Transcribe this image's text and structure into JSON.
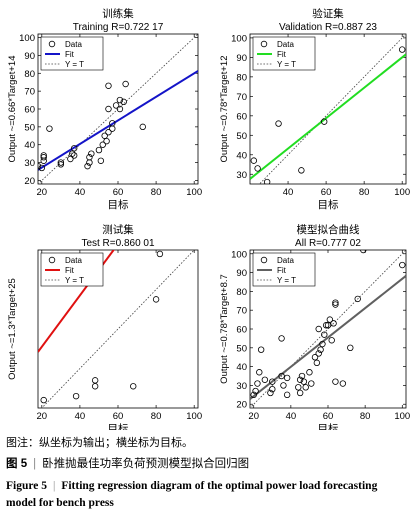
{
  "chart_data": [
    {
      "type": "scatter",
      "panel_title": "训练集",
      "subtitle": "Training R=0.722 17",
      "xlabel": "目标",
      "ylabel": "Output ~=0.66*Target+14",
      "xlim": [
        18,
        102
      ],
      "ylim": [
        18,
        102
      ],
      "xticks": [
        20,
        40,
        60,
        80,
        100
      ],
      "yticks": [
        20,
        30,
        40,
        50,
        60,
        70,
        80,
        90,
        100
      ],
      "grid": false,
      "legend_position": "top-left",
      "legend": [
        "Data",
        "Fit",
        "Y = T"
      ],
      "fit_color": "#1414c8",
      "fit": {
        "slope": 0.66,
        "intercept": 14
      },
      "points": [
        [
          18,
          28
        ],
        [
          20,
          27
        ],
        [
          21,
          31
        ],
        [
          21,
          33
        ],
        [
          21,
          34
        ],
        [
          24,
          49
        ],
        [
          30,
          29
        ],
        [
          30,
          30
        ],
        [
          35,
          32
        ],
        [
          36,
          35
        ],
        [
          37,
          34
        ],
        [
          37,
          38
        ],
        [
          44,
          28
        ],
        [
          45,
          33
        ],
        [
          45,
          30
        ],
        [
          46,
          35
        ],
        [
          50,
          37
        ],
        [
          51,
          31
        ],
        [
          52,
          40
        ],
        [
          53,
          45
        ],
        [
          54,
          42
        ],
        [
          55,
          60
        ],
        [
          55,
          47
        ],
        [
          55,
          73
        ],
        [
          57,
          49
        ],
        [
          57,
          52
        ],
        [
          59,
          62
        ],
        [
          61,
          60
        ],
        [
          61,
          65
        ],
        [
          63,
          64
        ],
        [
          64,
          74
        ],
        [
          73,
          50
        ]
      ]
    },
    {
      "type": "scatter",
      "panel_title": "验证集",
      "subtitle": "Validation R=0.887 23",
      "xlabel": "目标",
      "ylabel": "Output ~=0.78*Target+12",
      "xlim": [
        20,
        102
      ],
      "ylim": [
        25,
        102
      ],
      "xticks": [
        40,
        60,
        80,
        100
      ],
      "yticks": [
        30,
        40,
        50,
        60,
        70,
        80,
        90,
        100
      ],
      "grid": false,
      "legend_position": "top-left",
      "legend": [
        "Data",
        "Fit",
        "Y = T"
      ],
      "fit_color": "#22dd22",
      "fit": {
        "slope": 0.78,
        "intercept": 12
      },
      "points": [
        [
          22,
          37
        ],
        [
          24,
          33
        ],
        [
          29,
          26
        ],
        [
          35,
          56
        ],
        [
          47,
          32
        ],
        [
          59,
          57
        ],
        [
          100,
          94
        ]
      ]
    },
    {
      "type": "scatter",
      "panel_title": "测试集",
      "subtitle": "Test R=0.860 01",
      "xlabel": "目标",
      "ylabel": "Output ~=1.3*Target+25",
      "xlim": [
        18,
        102
      ],
      "ylim": [
        20,
        100
      ],
      "xticks": [
        20,
        40,
        60,
        80,
        100
      ],
      "yticks": [],
      "grid": false,
      "legend_position": "top-left",
      "legend": [
        "Data",
        "Fit",
        "Y = T"
      ],
      "fit_color": "#e01010",
      "fit": {
        "slope": 1.3,
        "intercept": 25
      },
      "points": [
        [
          21,
          24
        ],
        [
          38,
          26
        ],
        [
          48,
          31
        ],
        [
          48,
          34
        ],
        [
          68,
          31
        ],
        [
          80,
          75
        ],
        [
          82,
          98
        ]
      ]
    },
    {
      "type": "scatter",
      "panel_title": "模型拟合曲线",
      "subtitle": "All R=0.777 02",
      "xlabel": "目标",
      "ylabel": "Output ~=0.78*Target+8.7",
      "xlim": [
        18,
        102
      ],
      "ylim": [
        18,
        102
      ],
      "xticks": [
        20,
        40,
        60,
        80,
        100
      ],
      "yticks": [
        20,
        30,
        40,
        50,
        60,
        70,
        80,
        90,
        100
      ],
      "grid": false,
      "legend_position": "top-left",
      "legend": [
        "Data",
        "Fit",
        "Y = T"
      ],
      "fit_color": "#606060",
      "fit": {
        "slope": 0.78,
        "intercept": 8.7
      },
      "points": [
        [
          20,
          25
        ],
        [
          21,
          27
        ],
        [
          22,
          31
        ],
        [
          23,
          37
        ],
        [
          24,
          49
        ],
        [
          26,
          33
        ],
        [
          29,
          26
        ],
        [
          30,
          28
        ],
        [
          30,
          32
        ],
        [
          35,
          35
        ],
        [
          35,
          55
        ],
        [
          36,
          30
        ],
        [
          38,
          34
        ],
        [
          38,
          25
        ],
        [
          44,
          29
        ],
        [
          45,
          26
        ],
        [
          45,
          33
        ],
        [
          46,
          35
        ],
        [
          47,
          32
        ],
        [
          48,
          29
        ],
        [
          50,
          37
        ],
        [
          51,
          31
        ],
        [
          53,
          45
        ],
        [
          54,
          42
        ],
        [
          55,
          47
        ],
        [
          55,
          60
        ],
        [
          56,
          49
        ],
        [
          57,
          52
        ],
        [
          58,
          57
        ],
        [
          59,
          62
        ],
        [
          60,
          62
        ],
        [
          61,
          65
        ],
        [
          62,
          54
        ],
        [
          63,
          63
        ],
        [
          64,
          32
        ],
        [
          64,
          73
        ],
        [
          64,
          74
        ],
        [
          68,
          31
        ],
        [
          72,
          50
        ],
        [
          76,
          76
        ],
        [
          79,
          102
        ],
        [
          100,
          94
        ]
      ]
    }
  ],
  "captions": {
    "note": "图注：纵坐标为输出；横坐标为目标。",
    "cn_num": "图 5",
    "cn_sep": "|",
    "cn_text": "卧推抛最佳功率负荷预测模型拟合回归图",
    "en_num": "Figure 5",
    "en_sep": "|",
    "en_text": "Fitting regression diagram of the optimal power load forecasting model for bench press"
  }
}
